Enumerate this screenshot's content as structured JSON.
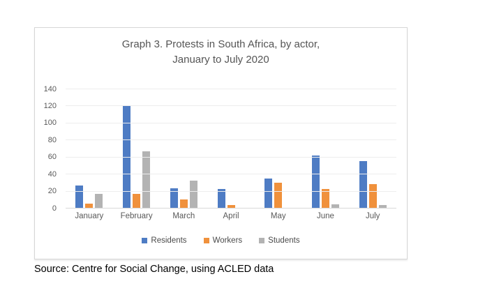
{
  "card": {
    "title_line1": "Graph 3. Protests in South Africa, by actor,",
    "title_line2": "January to July 2020"
  },
  "source": "Source: Centre for Social Change, using ACLED data",
  "colors": {
    "residents": "#4e7cc4",
    "workers": "#f0913c",
    "students": "#b3b3b3",
    "gridline": "#ededed",
    "axis_text": "#595959"
  },
  "chart_data": {
    "type": "bar",
    "title": "Graph 3. Protests in South Africa, by actor, January to July 2020",
    "categories": [
      "January",
      "February",
      "March",
      "April",
      "May",
      "June",
      "July"
    ],
    "series": [
      {
        "name": "Residents",
        "color": "#4e7cc4",
        "values": [
          27,
          120,
          24,
          23,
          35,
          62,
          56
        ]
      },
      {
        "name": "Workers",
        "color": "#f0913c",
        "values": [
          6,
          17,
          11,
          4,
          30,
          23,
          29
        ]
      },
      {
        "name": "Students",
        "color": "#b3b3b3",
        "values": [
          17,
          67,
          33,
          0,
          0,
          5,
          4
        ]
      }
    ],
    "xlabel": "",
    "ylabel": "",
    "ylim": [
      0,
      140
    ],
    "yticks": [
      0,
      20,
      40,
      60,
      80,
      100,
      120,
      140
    ],
    "grid": true,
    "legend_position": "bottom"
  }
}
